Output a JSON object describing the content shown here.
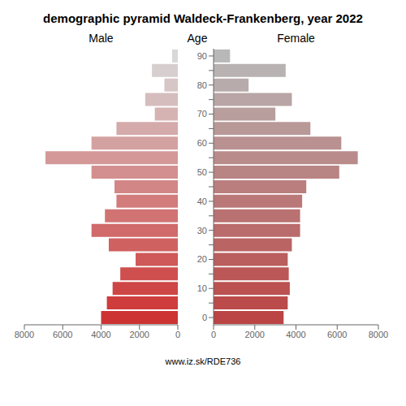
{
  "chart_data": {
    "type": "pyramid",
    "title": "demographic pyramid Waldeck-Frankenberg, year 2022",
    "orientation": "horizontal",
    "ylabel": "Age",
    "categories": [
      0,
      null,
      10,
      null,
      20,
      null,
      30,
      null,
      40,
      null,
      50,
      null,
      60,
      null,
      70,
      null,
      80,
      null,
      90
    ],
    "series": [
      {
        "name": "Male",
        "values": [
          4000,
          3700,
          3400,
          3000,
          2200,
          3600,
          4500,
          3800,
          3200,
          3300,
          4500,
          6900,
          4500,
          3200,
          1200,
          1700,
          700,
          1350,
          300
        ],
        "colors": [
          "#cd3333",
          "#ce3c3c",
          "#ce4545",
          "#cf4f4f",
          "#cf5858",
          "#d06161",
          "#d16a6a",
          "#d17373",
          "#d27c7c",
          "#d38686",
          "#d38f8f",
          "#d49898",
          "#d4a1a1",
          "#d5aaaa",
          "#d6b3b3",
          "#d6bdbd",
          "#d7c6c6",
          "#d7cfcf",
          "#d8d8d8"
        ]
      },
      {
        "name": "Female",
        "values": [
          3400,
          3600,
          3700,
          3650,
          3600,
          3800,
          4200,
          4200,
          4300,
          4500,
          6100,
          7000,
          6200,
          4700,
          3000,
          3800,
          1700,
          3500,
          800
        ],
        "colors": [
          "#bb4444",
          "#bb4a4a",
          "#bb5151",
          "#bb5757",
          "#ba5e5e",
          "#ba6464",
          "#ba6b6b",
          "#ba7171",
          "#ba7878",
          "#ba7e7e",
          "#b98484",
          "#b98b8b",
          "#b99191",
          "#b99898",
          "#b99e9e",
          "#b9a5a5",
          "#b8abab",
          "#b8b2b2",
          "#b8b8b8"
        ]
      }
    ],
    "xlim": [
      0,
      8000
    ],
    "xticks": [
      0,
      2000,
      4000,
      6000,
      8000
    ],
    "grid": false,
    "annotations": [
      "www.iz.sk/RDE736"
    ]
  }
}
